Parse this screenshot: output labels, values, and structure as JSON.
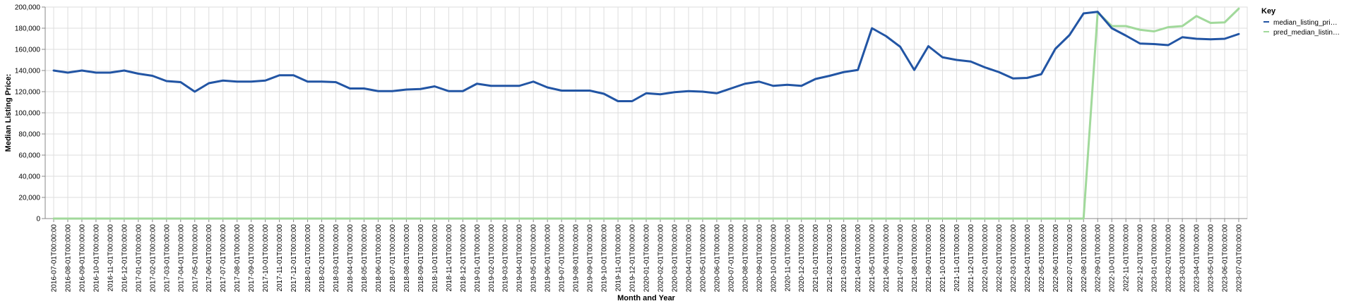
{
  "chart_data": {
    "type": "line",
    "xlabel": "Month and Year",
    "ylabel": "Median Listing Price:",
    "ylim": [
      0,
      200000
    ],
    "yticks": [
      "0",
      "20,000",
      "40,000",
      "60,000",
      "80,000",
      "100,000",
      "120,000",
      "140,000",
      "160,000",
      "180,000",
      "200,000"
    ],
    "grid": true,
    "legend_title": "Key",
    "legend_position": "right",
    "x": [
      "2016-07-01T00:00:00",
      "2016-08-01T00:00:00",
      "2016-09-01T00:00:00",
      "2016-10-01T00:00:00",
      "2016-11-01T00:00:00",
      "2016-12-01T00:00:00",
      "2017-01-01T00:00:00",
      "2017-02-01T00:00:00",
      "2017-03-01T00:00:00",
      "2017-04-01T00:00:00",
      "2017-05-01T00:00:00",
      "2017-06-01T00:00:00",
      "2017-07-01T00:00:00",
      "2017-08-01T00:00:00",
      "2017-09-01T00:00:00",
      "2017-10-01T00:00:00",
      "2017-11-01T00:00:00",
      "2017-12-01T00:00:00",
      "2018-01-01T00:00:00",
      "2018-02-01T00:00:00",
      "2018-03-01T00:00:00",
      "2018-04-01T00:00:00",
      "2018-05-01T00:00:00",
      "2018-06-01T00:00:00",
      "2018-07-01T00:00:00",
      "2018-08-01T00:00:00",
      "2018-09-01T00:00:00",
      "2018-10-01T00:00:00",
      "2018-11-01T00:00:00",
      "2018-12-01T00:00:00",
      "2019-01-01T00:00:00",
      "2019-02-01T00:00:00",
      "2019-03-01T00:00:00",
      "2019-04-01T00:00:00",
      "2019-05-01T00:00:00",
      "2019-06-01T00:00:00",
      "2019-07-01T00:00:00",
      "2019-08-01T00:00:00",
      "2019-09-01T00:00:00",
      "2019-10-01T00:00:00",
      "2019-11-01T00:00:00",
      "2019-12-01T00:00:00",
      "2020-01-01T00:00:00",
      "2020-02-01T00:00:00",
      "2020-03-01T00:00:00",
      "2020-04-01T00:00:00",
      "2020-05-01T00:00:00",
      "2020-06-01T00:00:00",
      "2020-07-01T00:00:00",
      "2020-08-01T00:00:00",
      "2020-09-01T00:00:00",
      "2020-10-01T00:00:00",
      "2020-11-01T00:00:00",
      "2020-12-01T00:00:00",
      "2021-01-01T00:00:00",
      "2021-02-01T00:00:00",
      "2021-03-01T00:00:00",
      "2021-04-01T00:00:00",
      "2021-05-01T00:00:00",
      "2021-06-01T00:00:00",
      "2021-07-01T00:00:00",
      "2021-08-01T00:00:00",
      "2021-09-01T00:00:00",
      "2021-10-01T00:00:00",
      "2021-11-01T00:00:00",
      "2021-12-01T00:00:00",
      "2022-01-01T00:00:00",
      "2022-02-01T00:00:00",
      "2022-03-01T00:00:00",
      "2022-04-01T00:00:00",
      "2022-05-01T00:00:00",
      "2022-06-01T00:00:00",
      "2022-07-01T00:00:00",
      "2022-08-01T00:00:00",
      "2022-09-01T00:00:00",
      "2022-10-01T00:00:00",
      "2022-11-01T00:00:00",
      "2022-12-01T00:00:00",
      "2023-01-01T00:00:00",
      "2023-02-01T00:00:00",
      "2023-03-01T00:00:00",
      "2023-04-01T00:00:00",
      "2023-05-01T00:00:00",
      "2023-06-01T00:00:00",
      "2023-07-01T00:00:00"
    ],
    "series": [
      {
        "name": "median_listing_pri…",
        "color": "#2255a4",
        "values": [
          140000,
          138000,
          140000,
          138000,
          138000,
          140000,
          137000,
          135000,
          130000,
          129000,
          120000,
          128000,
          130500,
          129500,
          129500,
          130500,
          135500,
          135500,
          129500,
          129500,
          129000,
          123000,
          123000,
          120500,
          120500,
          122000,
          122500,
          125000,
          120500,
          120500,
          127500,
          125500,
          125500,
          125500,
          129500,
          124000,
          121000,
          121000,
          121000,
          118000,
          111000,
          111000,
          118500,
          117500,
          119500,
          120500,
          120000,
          118500,
          123000,
          127500,
          129500,
          125500,
          126500,
          125500,
          132000,
          135000,
          138500,
          140500,
          180000,
          172500,
          162500,
          140500,
          163000,
          152500,
          150000,
          148500,
          143000,
          138500,
          132500,
          133000,
          136500,
          160500,
          173500,
          194000,
          195500,
          180000,
          173000,
          165500,
          165000,
          164000,
          171500,
          170000,
          169500,
          170000,
          174500
        ]
      },
      {
        "name": "pred_median_listin…",
        "color": "#a1d99b",
        "values": [
          0,
          0,
          0,
          0,
          0,
          0,
          0,
          0,
          0,
          0,
          0,
          0,
          0,
          0,
          0,
          0,
          0,
          0,
          0,
          0,
          0,
          0,
          0,
          0,
          0,
          0,
          0,
          0,
          0,
          0,
          0,
          0,
          0,
          0,
          0,
          0,
          0,
          0,
          0,
          0,
          0,
          0,
          0,
          0,
          0,
          0,
          0,
          0,
          0,
          0,
          0,
          0,
          0,
          0,
          0,
          0,
          0,
          0,
          0,
          0,
          0,
          0,
          0,
          0,
          0,
          0,
          0,
          0,
          0,
          0,
          0,
          0,
          0,
          0,
          195000,
          182000,
          182000,
          178500,
          177000,
          181000,
          182000,
          191500,
          185000,
          185500,
          198500
        ]
      }
    ]
  }
}
